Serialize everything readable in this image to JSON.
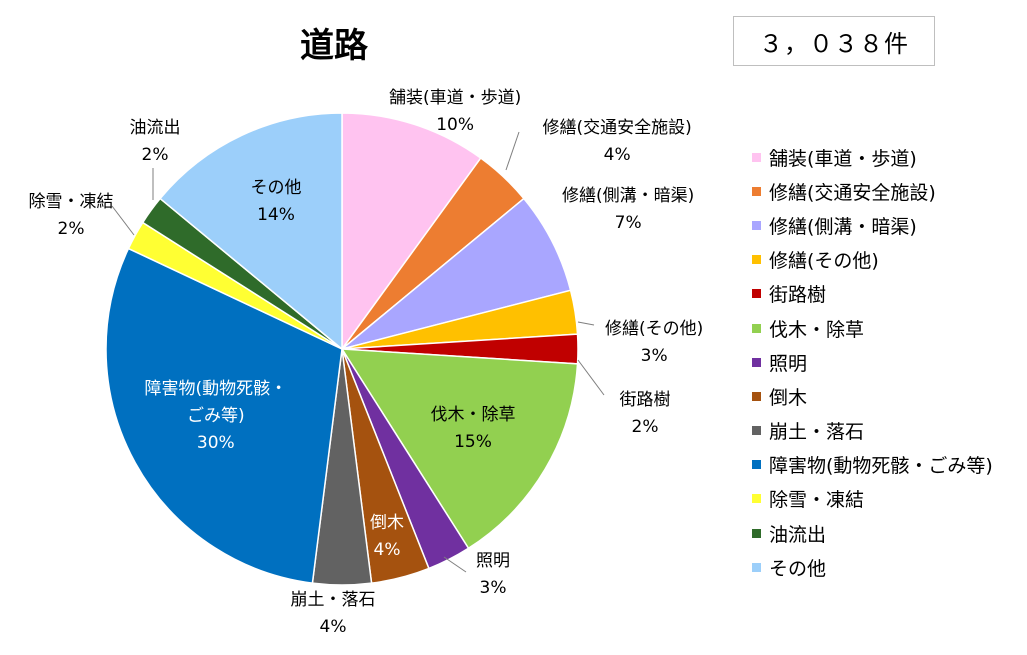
{
  "title": "道路",
  "count": "３，０３８件",
  "chart_data": {
    "type": "pie",
    "title": "道路",
    "slices": [
      {
        "label": "舗装(車道・歩道)",
        "value": 10,
        "pct": "10%",
        "color": "#ffc3f0"
      },
      {
        "label": "修繕(交通安全施設)",
        "value": 4,
        "pct": "4%",
        "color": "#ed7d31"
      },
      {
        "label": "修繕(側溝・暗渠)",
        "value": 7,
        "pct": "7%",
        "color": "#a9a6ff"
      },
      {
        "label": "修繕(その他)",
        "value": 3,
        "pct": "3%",
        "color": "#ffc000"
      },
      {
        "label": "街路樹",
        "value": 2,
        "pct": "2%",
        "color": "#c00000"
      },
      {
        "label": "伐木・除草",
        "value": 15,
        "pct": "15%",
        "color": "#92d050"
      },
      {
        "label": "照明",
        "value": 3,
        "pct": "3%",
        "color": "#7030a0"
      },
      {
        "label": "倒木",
        "value": 4,
        "pct": "4%",
        "color": "#a5520f"
      },
      {
        "label": "崩土・落石",
        "value": 4,
        "pct": "4%",
        "color": "#626262"
      },
      {
        "label": "障害物(動物死骸・ごみ等)",
        "value": 30,
        "pct": "30%",
        "color": "#0070c0"
      },
      {
        "label": "除雪・凍結",
        "value": 2,
        "pct": "2%",
        "color": "#ffff33"
      },
      {
        "label": "油流出",
        "value": 2,
        "pct": "2%",
        "color": "#2f6b2a"
      },
      {
        "label": "その他",
        "value": 14,
        "pct": "14%",
        "color": "#9ccffa"
      }
    ],
    "slice_labels": [
      [
        "舗装(車道・歩道)"
      ],
      [
        "修繕(交通安全施設)"
      ],
      [
        "修繕(側溝・暗渠)"
      ],
      [
        "修繕(その他)"
      ],
      [
        "街路樹"
      ],
      [
        "伐木・除草"
      ],
      [
        "照明"
      ],
      [
        "倒木"
      ],
      [
        "崩土・落石"
      ],
      [
        "障害物(動物死骸・",
        "ごみ等)"
      ],
      [
        "除雪・凍結"
      ],
      [
        "油流出"
      ],
      [
        "その他"
      ]
    ],
    "legend_position": "right"
  }
}
